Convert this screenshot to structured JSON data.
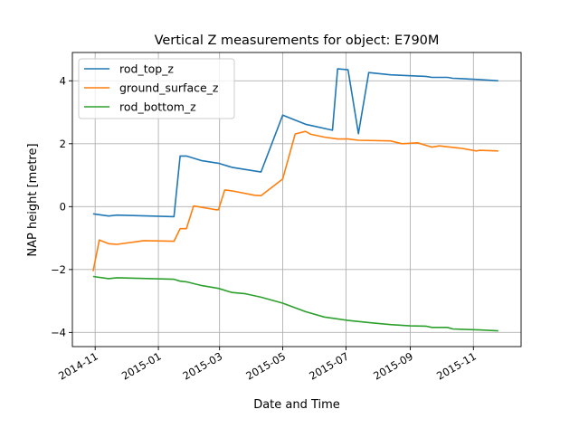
{
  "chart_data": {
    "type": "line",
    "title": "Vertical Z measurements for object: E790M",
    "xlabel": "Date and Time",
    "ylabel": "NAP height [metre]",
    "xlim": [
      "2014-10-10",
      "2015-12-17"
    ],
    "ylim": [
      -4.45,
      4.9
    ],
    "xticks": [
      {
        "date": "2014-11-01",
        "label": "2014-11"
      },
      {
        "date": "2015-01-01",
        "label": "2015-01"
      },
      {
        "date": "2015-03-01",
        "label": "2015-03"
      },
      {
        "date": "2015-05-01",
        "label": "2015-05"
      },
      {
        "date": "2015-07-01",
        "label": "2015-07"
      },
      {
        "date": "2015-09-01",
        "label": "2015-09"
      },
      {
        "date": "2015-11-01",
        "label": "2015-11"
      }
    ],
    "yticks": [
      {
        "v": -4,
        "label": "−4"
      },
      {
        "v": -2,
        "label": "−2"
      },
      {
        "v": 0,
        "label": "0"
      },
      {
        "v": 2,
        "label": "2"
      },
      {
        "v": 4,
        "label": "4"
      }
    ],
    "grid": true,
    "legend_position": "top-left",
    "series": [
      {
        "name": "rod_top_z",
        "color": "#1f77b4",
        "points": [
          [
            "2014-10-30",
            -0.23
          ],
          [
            "2014-11-14",
            -0.3
          ],
          [
            "2014-11-22",
            -0.27
          ],
          [
            "2015-01-16",
            -0.32
          ],
          [
            "2015-01-22",
            1.61
          ],
          [
            "2015-01-28",
            1.61
          ],
          [
            "2015-02-12",
            1.46
          ],
          [
            "2015-02-28",
            1.38
          ],
          [
            "2015-03-13",
            1.25
          ],
          [
            "2015-03-26",
            1.18
          ],
          [
            "2015-04-10",
            1.1
          ],
          [
            "2015-05-01",
            2.91
          ],
          [
            "2015-05-23",
            2.62
          ],
          [
            "2015-06-18",
            2.43
          ],
          [
            "2015-06-23",
            4.38
          ],
          [
            "2015-07-03",
            4.35
          ],
          [
            "2015-07-13",
            2.32
          ],
          [
            "2015-07-23",
            4.26
          ],
          [
            "2015-08-13",
            4.19
          ],
          [
            "2015-09-01",
            4.16
          ],
          [
            "2015-09-16",
            4.14
          ],
          [
            "2015-09-22",
            4.11
          ],
          [
            "2015-10-07",
            4.11
          ],
          [
            "2015-10-12",
            4.08
          ],
          [
            "2015-10-21",
            4.07
          ],
          [
            "2015-11-07",
            4.04
          ],
          [
            "2015-11-25",
            4.0
          ]
        ]
      },
      {
        "name": "ground_surface_z",
        "color": "#ff7f0e",
        "points": [
          [
            "2014-10-30",
            -2.05
          ],
          [
            "2014-11-05",
            -1.06
          ],
          [
            "2014-11-14",
            -1.18
          ],
          [
            "2014-11-22",
            -1.2
          ],
          [
            "2014-12-18",
            -1.08
          ],
          [
            "2015-01-16",
            -1.1
          ],
          [
            "2015-01-22",
            -0.7
          ],
          [
            "2015-01-28",
            -0.7
          ],
          [
            "2015-02-04",
            0.02
          ],
          [
            "2015-02-26",
            -0.1
          ],
          [
            "2015-02-28",
            -0.1
          ],
          [
            "2015-03-06",
            0.53
          ],
          [
            "2015-03-13",
            0.5
          ],
          [
            "2015-04-04",
            0.36
          ],
          [
            "2015-04-10",
            0.35
          ],
          [
            "2015-05-01",
            0.88
          ],
          [
            "2015-05-13",
            2.31
          ],
          [
            "2015-05-23",
            2.39
          ],
          [
            "2015-05-28",
            2.3
          ],
          [
            "2015-06-10",
            2.21
          ],
          [
            "2015-06-23",
            2.15
          ],
          [
            "2015-07-03",
            2.15
          ],
          [
            "2015-07-13",
            2.11
          ],
          [
            "2015-08-13",
            2.09
          ],
          [
            "2015-08-24",
            2.0
          ],
          [
            "2015-09-08",
            2.03
          ],
          [
            "2015-09-22",
            1.89
          ],
          [
            "2015-09-29",
            1.93
          ],
          [
            "2015-10-21",
            1.85
          ],
          [
            "2015-11-04",
            1.77
          ],
          [
            "2015-11-07",
            1.79
          ],
          [
            "2015-11-25",
            1.77
          ]
        ]
      },
      {
        "name": "rod_bottom_z",
        "color": "#2ca02c",
        "points": [
          [
            "2014-10-30",
            -2.22
          ],
          [
            "2014-11-14",
            -2.29
          ],
          [
            "2014-11-22",
            -2.26
          ],
          [
            "2015-01-16",
            -2.31
          ],
          [
            "2015-01-22",
            -2.37
          ],
          [
            "2015-01-28",
            -2.39
          ],
          [
            "2015-02-12",
            -2.51
          ],
          [
            "2015-02-28",
            -2.6
          ],
          [
            "2015-03-13",
            -2.73
          ],
          [
            "2015-03-26",
            -2.77
          ],
          [
            "2015-04-10",
            -2.88
          ],
          [
            "2015-05-01",
            -3.07
          ],
          [
            "2015-05-23",
            -3.34
          ],
          [
            "2015-06-10",
            -3.51
          ],
          [
            "2015-07-03",
            -3.62
          ],
          [
            "2015-07-24",
            -3.69
          ],
          [
            "2015-08-13",
            -3.75
          ],
          [
            "2015-09-01",
            -3.79
          ],
          [
            "2015-09-16",
            -3.8
          ],
          [
            "2015-09-22",
            -3.84
          ],
          [
            "2015-10-07",
            -3.84
          ],
          [
            "2015-10-12",
            -3.89
          ],
          [
            "2015-11-07",
            -3.92
          ],
          [
            "2015-11-25",
            -3.95
          ]
        ]
      }
    ]
  }
}
